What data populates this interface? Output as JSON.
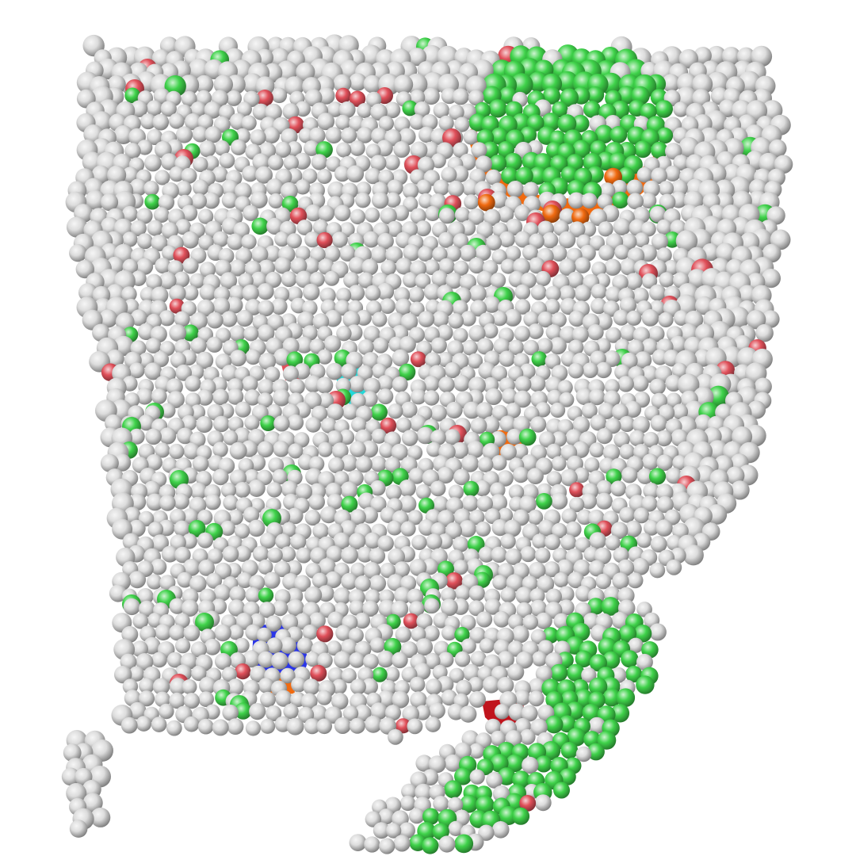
{
  "scene": {
    "background": "#ffffff",
    "atom_colors": {
      "white": "#dcdcdc",
      "green": "#3fd24a",
      "red": "#e0505a",
      "orange": "#f06a10",
      "blue": "#2a35e8",
      "cyan": "#22d8d8",
      "dark_red": "#c0141c"
    }
  }
}
